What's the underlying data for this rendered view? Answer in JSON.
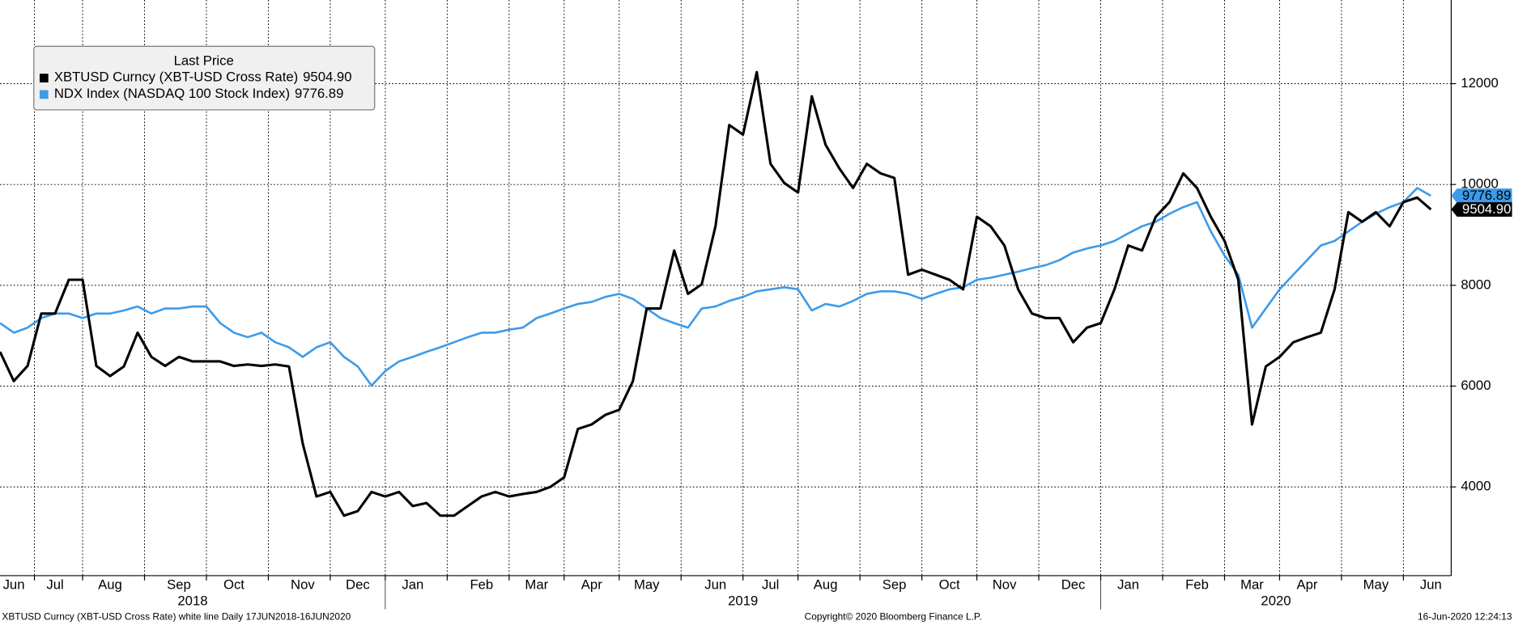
{
  "chart_data": {
    "type": "line",
    "categories": [
      null,
      "Jun",
      null,
      null,
      "Jul",
      null,
      null,
      null,
      "Aug",
      null,
      null,
      null,
      null,
      "Sep",
      null,
      null,
      null,
      "Oct",
      null,
      null,
      null,
      null,
      "Nov",
      null,
      null,
      null,
      "Dec",
      null,
      null,
      null,
      "Jan",
      null,
      null,
      null,
      null,
      "Feb",
      null,
      null,
      null,
      "Mar",
      null,
      null,
      null,
      "Apr",
      null,
      null,
      null,
      "May",
      null,
      null,
      null,
      null,
      "Jun",
      null,
      null,
      null,
      "Jul",
      null,
      null,
      null,
      "Aug",
      null,
      null,
      null,
      null,
      "Sep",
      null,
      null,
      null,
      "Oct",
      null,
      null,
      null,
      "Nov",
      null,
      null,
      null,
      null,
      "Dec",
      null,
      null,
      null,
      "Jan",
      null,
      null,
      null,
      null,
      "Feb",
      null,
      null,
      null,
      "Mar",
      null,
      null,
      null,
      "Apr",
      null,
      null,
      null,
      null,
      "May",
      null,
      null,
      null,
      "Jun"
    ],
    "years": [
      "2018",
      "2019",
      "2020"
    ],
    "series": [
      {
        "name": "XBTUSD Curncy (XBT-USD Cross Rate)",
        "color": "#000000",
        "values": [
          6680,
          6100,
          6400,
          7440,
          7440,
          8110,
          8110,
          6400,
          6200,
          6390,
          7060,
          6580,
          6400,
          6580,
          6490,
          6490,
          6490,
          6400,
          6430,
          6400,
          6430,
          6390,
          4860,
          3810,
          3900,
          3430,
          3520,
          3900,
          3810,
          3900,
          3620,
          3680,
          3430,
          3430,
          3620,
          3810,
          3900,
          3810,
          3860,
          3900,
          4000,
          4190,
          5150,
          5240,
          5430,
          5530,
          6100,
          7540,
          7540,
          8690,
          7830,
          8020,
          9170,
          11180,
          10990,
          12230,
          10410,
          10030,
          9840,
          11750,
          10790,
          10320,
          9930,
          10410,
          10220,
          10130,
          8210,
          8310,
          8210,
          8110,
          7920,
          9360,
          9170,
          8790,
          7920,
          7440,
          7350,
          7350,
          6870,
          7160,
          7250,
          7920,
          8790,
          8690,
          9360,
          9650,
          10220,
          9930,
          9360,
          8880,
          8110,
          5240,
          6390,
          6580,
          6870,
          6970,
          7060,
          7920,
          9450,
          9260,
          9450,
          9170,
          9650,
          9740,
          9504.9
        ],
        "last_price": {
          "value": 9504.9,
          "label": "9504.90"
        }
      },
      {
        "name": "NDX Index (NASDAQ 100 Stock Index)",
        "color": "#3d9be9",
        "values": [
          7250,
          7060,
          7160,
          7350,
          7440,
          7440,
          7350,
          7440,
          7440,
          7500,
          7580,
          7440,
          7540,
          7540,
          7580,
          7580,
          7250,
          7060,
          6970,
          7060,
          6870,
          6770,
          6580,
          6770,
          6870,
          6580,
          6390,
          6010,
          6300,
          6490,
          6580,
          6680,
          6770,
          6870,
          6970,
          7060,
          7060,
          7120,
          7160,
          7350,
          7440,
          7540,
          7630,
          7670,
          7770,
          7830,
          7730,
          7540,
          7350,
          7250,
          7160,
          7540,
          7580,
          7690,
          7770,
          7880,
          7920,
          7960,
          7920,
          7500,
          7630,
          7580,
          7690,
          7830,
          7880,
          7880,
          7830,
          7730,
          7830,
          7920,
          7960,
          8110,
          8150,
          8210,
          8270,
          8340,
          8400,
          8500,
          8650,
          8730,
          8790,
          8880,
          9030,
          9170,
          9260,
          9420,
          9550,
          9650,
          9070,
          8590,
          8210,
          7160,
          7540,
          7920,
          8210,
          8500,
          8790,
          8880,
          9070,
          9260,
          9420,
          9550,
          9650,
          9930,
          9776.89
        ],
        "last_price": {
          "value": 9776.89,
          "label": "9776.89"
        }
      }
    ],
    "legend_title": "Last Price",
    "legend": "upper left",
    "ylim": [
      2240,
      13660
    ],
    "yticks": [
      4000,
      6000,
      8000,
      10000,
      12000
    ],
    "grid": true,
    "notes": {
      "left": "XBTUSD Curncy (XBT-USD Cross Rate) white line  Daily 17JUN2018-16JUN2020",
      "center": "Copyright© 2020 Bloomberg Finance L.P.",
      "right": "16-Jun-2020 12:24:13"
    }
  }
}
